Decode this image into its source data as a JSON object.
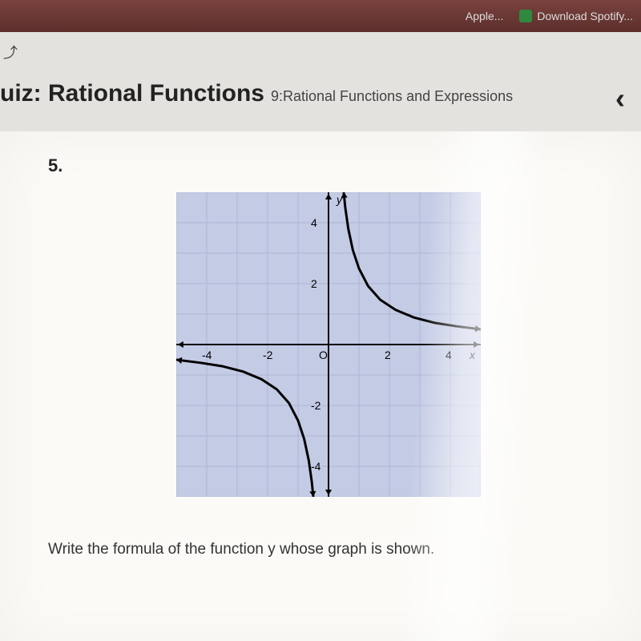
{
  "browser": {
    "tab1_label": "Apple...",
    "tab2_label": "Download Spotify..."
  },
  "header": {
    "title_main": "uiz: Rational Functions",
    "title_sub": "9:Rational Functions and Expressions"
  },
  "question": {
    "number": "5.",
    "prompt": "Write the formula of the function y whose graph is shown."
  },
  "chart": {
    "type": "line",
    "background_color": "#c4cbe5",
    "grid_color": "#aeb6d4",
    "axis_color": "#000000",
    "curve_color": "#000000",
    "curve_width": 3,
    "xlim": [
      -5,
      5
    ],
    "ylim": [
      -5,
      5
    ],
    "xtick_step": 1,
    "ytick_step": 1,
    "x_tick_labels": [
      -4,
      -2,
      0,
      2,
      4
    ],
    "y_tick_labels": [
      -4,
      -2,
      2,
      4
    ],
    "x_axis_label": "x",
    "y_axis_label": "y",
    "label_fontsize": 14,
    "branch1_points": [
      [
        0.5,
        5.0
      ],
      [
        0.55,
        4.5
      ],
      [
        0.65,
        3.8
      ],
      [
        0.8,
        3.1
      ],
      [
        1.0,
        2.5
      ],
      [
        1.3,
        1.92
      ],
      [
        1.7,
        1.47
      ],
      [
        2.2,
        1.14
      ],
      [
        2.8,
        0.89
      ],
      [
        3.5,
        0.71
      ],
      [
        4.2,
        0.6
      ],
      [
        5.0,
        0.5
      ]
    ],
    "branch2_points": [
      [
        -5.0,
        -0.5
      ],
      [
        -4.2,
        -0.6
      ],
      [
        -3.5,
        -0.71
      ],
      [
        -2.8,
        -0.89
      ],
      [
        -2.2,
        -1.14
      ],
      [
        -1.7,
        -1.47
      ],
      [
        -1.3,
        -1.92
      ],
      [
        -1.0,
        -2.5
      ],
      [
        -0.8,
        -3.1
      ],
      [
        -0.65,
        -3.8
      ],
      [
        -0.55,
        -4.5
      ],
      [
        -0.5,
        -5.0
      ]
    ]
  }
}
